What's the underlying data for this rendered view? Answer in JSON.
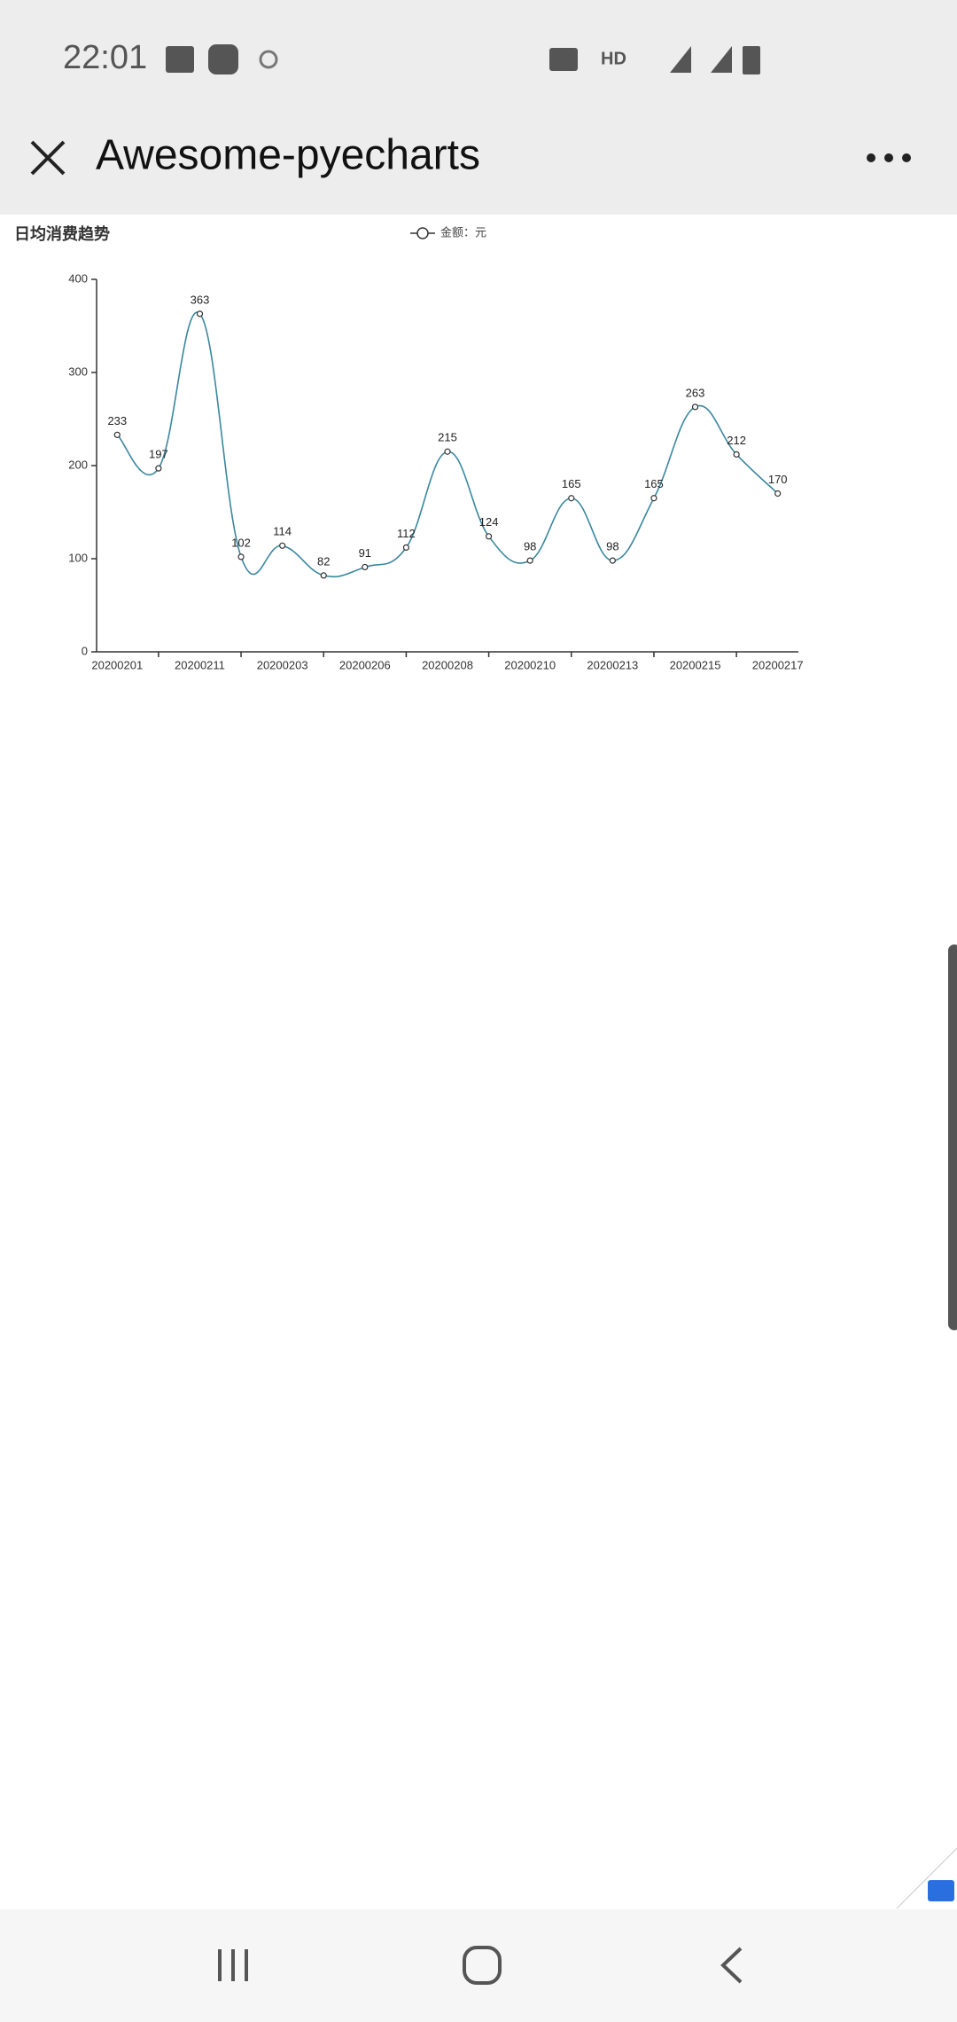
{
  "status_bar": {
    "time": "22:01",
    "network": "HD"
  },
  "toolbar": {
    "title": "Awesome-pyecharts"
  },
  "chart_data": {
    "type": "line",
    "title": "日均消费趋势",
    "categories": [
      "20200201",
      null,
      "20200211",
      null,
      "20200203",
      null,
      "20200206",
      null,
      "20200208",
      null,
      "20200210",
      null,
      "20200213",
      null,
      "20200215",
      null,
      "20200217"
    ],
    "series": [
      {
        "name": "金额：元",
        "color": "#3a879f",
        "values": [
          233,
          197,
          363,
          102,
          114,
          82,
          91,
          112,
          215,
          124,
          98,
          165,
          98,
          165,
          263,
          212,
          170
        ]
      }
    ],
    "ylim": [
      0,
      400
    ],
    "yticks": [
      0,
      100,
      200,
      300,
      400
    ],
    "smooth": true,
    "legend": "top"
  }
}
